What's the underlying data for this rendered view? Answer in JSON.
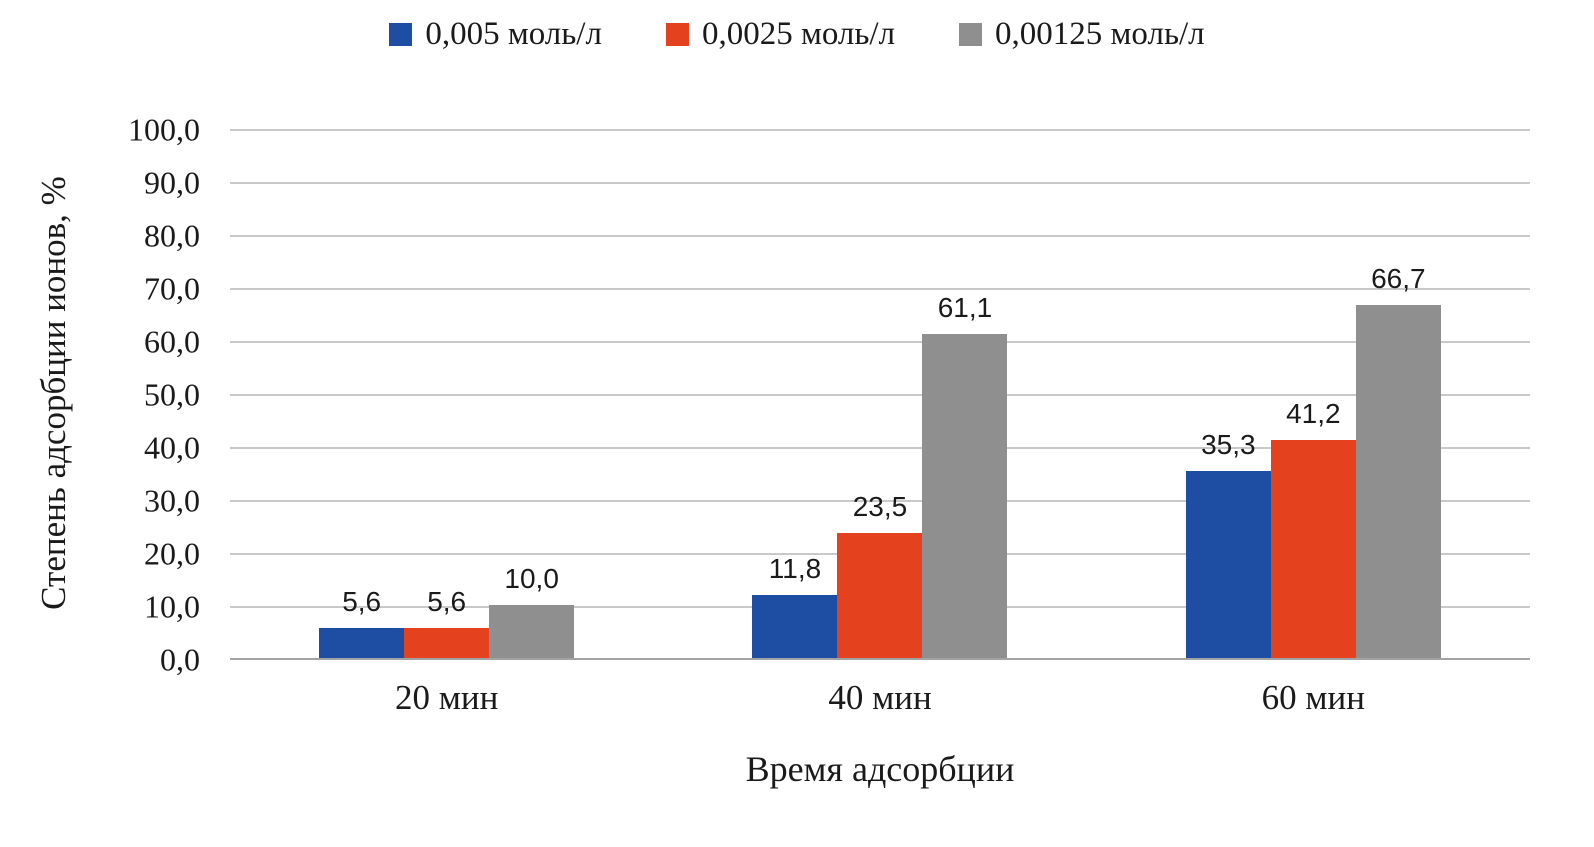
{
  "chart_data": {
    "type": "bar",
    "title": "",
    "categories": [
      "20 мин",
      "40 мин",
      "60 мин"
    ],
    "series": [
      {
        "name": "0,005 моль/л",
        "color": "#1E4DA4",
        "values": [
          5.6,
          11.8,
          35.3
        ],
        "value_labels": [
          "5,6",
          "11,8",
          "35,3"
        ]
      },
      {
        "name": "0,0025 моль/л",
        "color": "#E4411E",
        "values": [
          5.6,
          23.5,
          41.2
        ],
        "value_labels": [
          "5,6",
          "23,5",
          "41,2"
        ]
      },
      {
        "name": "0,00125 моль/л",
        "color": "#8F8F8F",
        "values": [
          10.0,
          61.1,
          66.7
        ],
        "value_labels": [
          "10,0",
          "61,1",
          "66,7"
        ]
      }
    ],
    "xlabel": "Время адсорбции",
    "ylabel": "Степень адсорбции ионов, %",
    "ylim": [
      0,
      100
    ],
    "ytick_step": 10,
    "ytick_labels": [
      "0,0",
      "10,0",
      "20,0",
      "30,0",
      "40,0",
      "50,0",
      "60,0",
      "70,0",
      "80,0",
      "90,0",
      "100,0"
    ],
    "grid": true,
    "legend_position": "top",
    "colors": {
      "gridline": "#C9C9C9",
      "axis_line": "#A3A3A3",
      "text": "#1A1A1A"
    }
  }
}
